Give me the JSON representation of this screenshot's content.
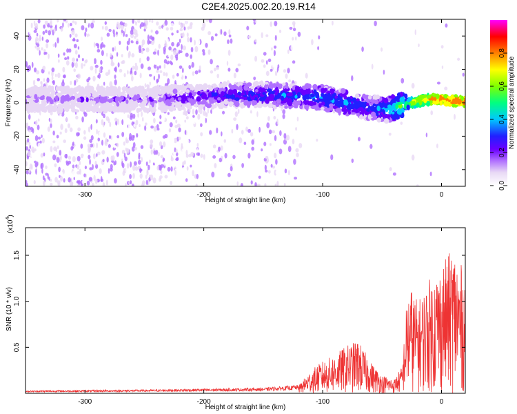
{
  "title": "C2E4.2025.002.20.19.R14",
  "chart_data": [
    {
      "type": "heatmap",
      "xlabel": "Height of straight line (km)",
      "ylabel": "Frequency (Hz)",
      "xlim": [
        -350,
        20
      ],
      "ylim": [
        -50,
        50
      ],
      "x_ticks": [
        -300,
        -200,
        -100,
        0
      ],
      "y_ticks": [
        -40,
        -20,
        0,
        20,
        40
      ],
      "colorbar": {
        "label": "Normalized spectral amplitude",
        "range": [
          0,
          1
        ],
        "ticks": [
          "0.0",
          "0.2",
          "0.4",
          "0.6",
          "0.8"
        ],
        "colormap": [
          "#ffffff",
          "#e8d8f5",
          "#b070ff",
          "#6a00ff",
          "#2020ff",
          "#00c8ff",
          "#00ff80",
          "#80ff00",
          "#ffff00",
          "#ff8000",
          "#ff0000",
          "#ff00ff"
        ]
      },
      "ridge": {
        "x": [
          -350,
          -300,
          -250,
          -200,
          -150,
          -120,
          -100,
          -80,
          -60,
          -45,
          -30,
          -20,
          -10,
          0,
          10,
          20
        ],
        "frequency": [
          2,
          2,
          2,
          4,
          5,
          4,
          3,
          0,
          -3,
          -4,
          -1,
          1,
          2,
          2,
          1,
          1
        ],
        "amplitude": [
          0.18,
          0.2,
          0.2,
          0.3,
          0.35,
          0.38,
          0.4,
          0.4,
          0.35,
          0.45,
          0.6,
          0.75,
          0.85,
          0.9,
          0.9,
          0.9
        ]
      }
    },
    {
      "type": "line",
      "xlabel": "Height of straight line (km)",
      "ylabel": "SNR (10 * v/v)",
      "y_scale_label": "(x10",
      "y_scale_exp": "4",
      "y_scale_close": ")",
      "xlim": [
        -350,
        20
      ],
      "ylim": [
        0,
        18000
      ],
      "x_ticks": [
        -300,
        -200,
        -100,
        0
      ],
      "y_ticks": [
        5000,
        10000,
        15000
      ],
      "y_tick_labels": [
        "0.5",
        "1.0",
        "1.5"
      ],
      "series": [
        {
          "color": "#ee3333",
          "envelope_x": [
            -350,
            -250,
            -200,
            -150,
            -120,
            -110,
            -100,
            -90,
            -80,
            -70,
            -60,
            -50,
            -40,
            -33,
            -30,
            -27,
            -20,
            -10,
            0,
            10,
            20
          ],
          "envelope_y": [
            300,
            400,
            500,
            600,
            900,
            2500,
            3500,
            4200,
            5200,
            5800,
            3500,
            2000,
            1500,
            3000,
            9000,
            12000,
            10000,
            12500,
            14000,
            16000,
            13000
          ]
        }
      ]
    }
  ]
}
